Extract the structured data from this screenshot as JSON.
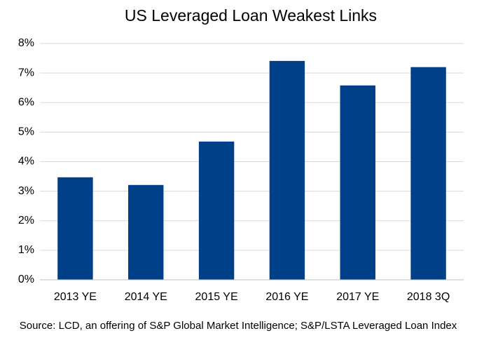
{
  "chart_data": {
    "type": "bar",
    "title": "US Leveraged Loan Weakest Links",
    "source": "Source: LCD, an offering of S&P Global Market Intelligence; S&P/LSTA Leveraged Loan Index",
    "categories": [
      "2013 YE",
      "2014 YE",
      "2015 YE",
      "2016 YE",
      "2017 YE",
      "2018 3Q"
    ],
    "values": [
      3.47,
      3.21,
      4.68,
      7.41,
      6.58,
      7.2
    ],
    "color": "#004088",
    "ylim": [
      0,
      8
    ],
    "yticks": [
      {
        "value": 0,
        "label": "0%"
      },
      {
        "value": 1,
        "label": "1%"
      },
      {
        "value": 2,
        "label": "2%"
      },
      {
        "value": 3,
        "label": "3%"
      },
      {
        "value": 4,
        "label": "4%"
      },
      {
        "value": 5,
        "label": "5%"
      },
      {
        "value": 6,
        "label": "6%"
      },
      {
        "value": 7,
        "label": "7%"
      },
      {
        "value": 8,
        "label": "8%"
      }
    ],
    "grid": true
  }
}
